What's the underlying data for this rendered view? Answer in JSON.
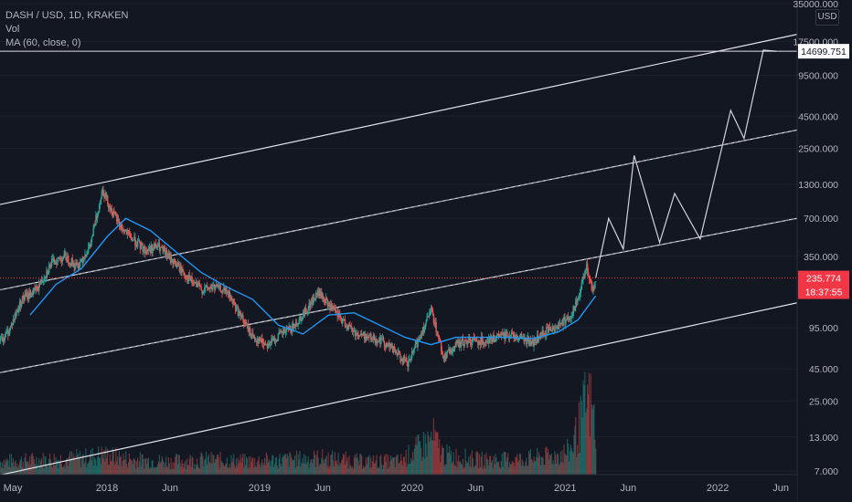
{
  "header": {
    "symbol": "DASH / USD, 1D, KRAKEN",
    "indicator_volume": "Vol",
    "indicator_ma": "MA (60, close, 0)"
  },
  "axis": {
    "currency": "USD",
    "price_ticks": [
      "35000.000",
      "17500.000",
      "9500.000",
      "4500.000",
      "2500.000",
      "1300.000",
      "700.000",
      "350.000",
      "95.000",
      "45.000",
      "25.000",
      "13.000",
      "7.000"
    ],
    "time_ticks": [
      "May",
      "2018",
      "Jun",
      "2019",
      "Jun",
      "2020",
      "Jun",
      "2021",
      "Jun",
      "2022",
      "Jun"
    ]
  },
  "labels": {
    "target_price": "14699.751",
    "last_price": "235.774",
    "countdown": "18:37:55"
  },
  "colors": {
    "background": "#131722",
    "up_candle": "#26a69a",
    "down_candle": "#ef5350",
    "ma_line": "#2196f3",
    "channel": "#e0e3eb",
    "last_price_badge": "#f23645"
  },
  "chart_data": {
    "type": "line",
    "y_scale": "log",
    "ylim": [
      7,
      35000
    ],
    "xlim": [
      "2017-04-20",
      "2022-07-10"
    ],
    "price_series": {
      "x": [
        "2017-04-20",
        "2017-05-10",
        "2017-06-10",
        "2017-07-15",
        "2017-08-20",
        "2017-09-20",
        "2017-10-20",
        "2017-11-20",
        "2017-12-20",
        "2018-01-10",
        "2018-02-05",
        "2018-03-01",
        "2018-04-01",
        "2018-05-01",
        "2018-06-15",
        "2018-07-15",
        "2018-08-15",
        "2018-09-15",
        "2018-10-15",
        "2018-11-20",
        "2018-12-15",
        "2019-01-20",
        "2019-02-20",
        "2019-03-20",
        "2019-04-20",
        "2019-05-20",
        "2019-06-25",
        "2019-07-20",
        "2019-08-20",
        "2019-09-20",
        "2019-10-20",
        "2019-11-20",
        "2019-12-20",
        "2020-01-20",
        "2020-02-15",
        "2020-03-15",
        "2020-04-15",
        "2020-05-15",
        "2020-06-15",
        "2020-07-15",
        "2020-08-15",
        "2020-09-15",
        "2020-10-15",
        "2020-11-15",
        "2020-12-15",
        "2021-01-15",
        "2021-02-05",
        "2021-02-20",
        "2021-03-05",
        "2021-03-15"
      ],
      "y": [
        75,
        90,
        160,
        190,
        310,
        350,
        290,
        420,
        1200,
        800,
        580,
        480,
        390,
        420,
        300,
        230,
        190,
        200,
        180,
        110,
        80,
        70,
        85,
        95,
        130,
        180,
        130,
        105,
        85,
        80,
        75,
        62,
        48,
        85,
        130,
        55,
        70,
        75,
        75,
        78,
        85,
        80,
        72,
        90,
        100,
        120,
        180,
        300,
        190,
        235.774
      ]
    },
    "ma_series": {
      "name": "MA (60, close, 0)",
      "x": [
        "2017-07-01",
        "2017-09-01",
        "2017-11-01",
        "2018-01-01",
        "2018-02-15",
        "2018-04-15",
        "2018-06-15",
        "2018-08-15",
        "2018-10-15",
        "2018-12-15",
        "2019-02-15",
        "2019-04-15",
        "2019-06-15",
        "2019-08-15",
        "2019-10-15",
        "2019-12-15",
        "2020-02-15",
        "2020-04-15",
        "2020-06-15",
        "2020-08-15",
        "2020-10-15",
        "2020-12-15",
        "2021-02-01",
        "2021-03-15"
      ],
      "y": [
        120,
        210,
        280,
        500,
        700,
        560,
        380,
        260,
        200,
        160,
        100,
        85,
        120,
        125,
        100,
        80,
        70,
        80,
        80,
        80,
        78,
        88,
        110,
        170
      ]
    },
    "projection": {
      "x": [
        "2021-03-15",
        "2021-04-15",
        "2021-05-20",
        "2021-06-15",
        "2021-08-15",
        "2021-09-20",
        "2021-11-20",
        "2022-02-01",
        "2022-03-05",
        "2022-04-20",
        "2022-05-20"
      ],
      "y": [
        235.774,
        700,
        400,
        2200,
        450,
        1100,
        480,
        5000,
        3000,
        15000,
        14699.751
      ]
    },
    "channel_lines": [
      {
        "style": "solid",
        "x": [
          "2017-04-20",
          "2022-07-10"
        ],
        "y": [
          900,
          20000
        ]
      },
      {
        "style": "dashed",
        "x": [
          "2017-04-20",
          "2022-07-10"
        ],
        "y": [
          190,
          3500
        ]
      },
      {
        "style": "dashed",
        "x": [
          "2017-04-20",
          "2022-07-10"
        ],
        "y": [
          42,
          700
        ]
      },
      {
        "style": "solid",
        "x": [
          "2017-04-20",
          "2022-07-10"
        ],
        "y": [
          6.5,
          150
        ]
      }
    ],
    "horizontal_lines": [
      {
        "name": "target",
        "y": 14699.751
      },
      {
        "name": "last",
        "y": 235.774
      }
    ],
    "volume": {
      "x": [
        "2017-05-01",
        "2017-08-01",
        "2017-11-01",
        "2017-12-20",
        "2018-03-01",
        "2018-06-01",
        "2018-09-01",
        "2018-12-01",
        "2019-03-01",
        "2019-06-01",
        "2019-09-01",
        "2019-12-01",
        "2020-02-20",
        "2020-03-15",
        "2020-06-01",
        "2020-09-01",
        "2020-12-01",
        "2021-01-10",
        "2021-02-05",
        "2021-02-20",
        "2021-03-05",
        "2021-03-15"
      ],
      "y": [
        8,
        9,
        10,
        12,
        9,
        8,
        9,
        8,
        9,
        10,
        8,
        8,
        22,
        12,
        9,
        9,
        11,
        14,
        30,
        45,
        40,
        25
      ],
      "scale_max": 50
    }
  }
}
